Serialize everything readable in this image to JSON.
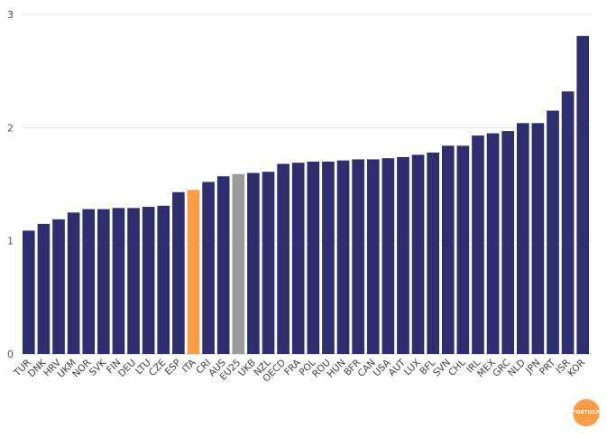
{
  "chart_data": {
    "type": "bar",
    "categories": [
      "TUR",
      "DNK",
      "HRV",
      "UKM",
      "NOR",
      "SVK",
      "FIN",
      "DEU",
      "LTU",
      "CZE",
      "ESP",
      "ITA",
      "CRI",
      "AUS",
      "EU25",
      "UKB",
      "NZL",
      "OECD",
      "FRA",
      "POL",
      "ROU",
      "HUN",
      "BFR",
      "CAN",
      "USA",
      "AUT",
      "LUX",
      "BFL",
      "SVN",
      "CHL",
      "IRL",
      "MEX",
      "GRC",
      "NLD",
      "JPN",
      "PRT",
      "ISR",
      "KOR"
    ],
    "values": [
      1.09,
      1.15,
      1.19,
      1.25,
      1.28,
      1.28,
      1.29,
      1.29,
      1.3,
      1.31,
      1.43,
      1.45,
      1.52,
      1.57,
      1.59,
      1.6,
      1.61,
      1.68,
      1.69,
      1.7,
      1.7,
      1.71,
      1.72,
      1.72,
      1.73,
      1.74,
      1.76,
      1.78,
      1.84,
      1.84,
      1.93,
      1.95,
      1.97,
      2.04,
      2.04,
      2.15,
      2.32,
      2.81
    ],
    "highlight": {
      "ITA": "#fc9d45",
      "EU25": "#9b9b9b"
    },
    "default_color": "#2e2e6e",
    "yticks": [
      0,
      1,
      2,
      3
    ],
    "ylim": [
      0,
      3
    ],
    "grid": true,
    "title": "",
    "xlabel": "",
    "ylabel": ""
  },
  "logo": {
    "text": "TORTUGA",
    "color": "#fc9d45"
  }
}
